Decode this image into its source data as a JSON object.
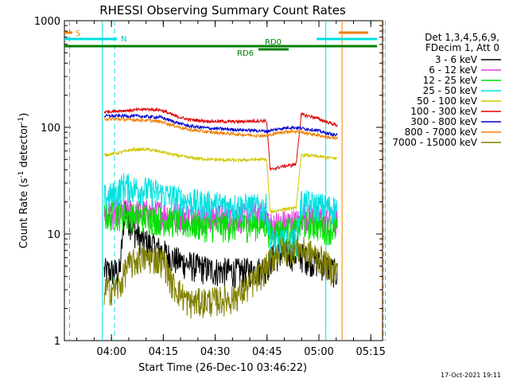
{
  "chart_data": {
    "type": "line",
    "title": "RHESSI Observing Summary Count Rates",
    "xlabel": "Start Time (26-Dec-10 03:46:22)",
    "ylabel_main": "Count Rate (s",
    "ylabel_sup1": "-1",
    "ylabel_mid": " detector",
    "ylabel_sup2": "-1",
    "ylabel_end": ")",
    "yscale": "log",
    "ylim": [
      1,
      1000
    ],
    "xlim_min": [
      0,
      92
    ],
    "y_ticks": [
      {
        "value": 1,
        "label": "1"
      },
      {
        "value": 10,
        "label": "10"
      },
      {
        "value": 100,
        "label": "100"
      },
      {
        "value": 1000,
        "label": "1000"
      }
    ],
    "x_ticks": [
      {
        "value": 13.6,
        "label": "04:00"
      },
      {
        "value": 28.6,
        "label": "04:15"
      },
      {
        "value": 43.6,
        "label": "04:30"
      },
      {
        "value": 58.6,
        "label": "04:45"
      },
      {
        "value": 73.6,
        "label": "05:00"
      },
      {
        "value": 88.6,
        "label": "05:15"
      }
    ],
    "legend_header": [
      "Det 1,3,4,5,6,9,",
      "FDecim 1, Att 0"
    ],
    "series": [
      {
        "name": "3 - 6 keV",
        "color": "#000000",
        "points": [
          [
            11.5,
            4.5
          ],
          [
            16,
            4.5
          ],
          [
            17.5,
            18
          ],
          [
            18.5,
            14
          ],
          [
            20,
            11
          ],
          [
            22,
            9
          ],
          [
            25,
            8
          ],
          [
            28,
            7
          ],
          [
            31,
            6
          ],
          [
            34,
            5.5
          ],
          [
            38,
            5
          ],
          [
            43,
            4.6
          ],
          [
            50,
            4.5
          ],
          [
            56,
            4.6
          ],
          [
            58.5,
            5
          ],
          [
            60,
            6
          ],
          [
            62,
            6.5
          ],
          [
            67,
            6.5
          ],
          [
            70,
            6
          ],
          [
            73,
            5.5
          ],
          [
            76,
            5
          ],
          [
            78,
            4.5
          ],
          [
            79,
            4.2
          ]
        ]
      },
      {
        "name": "6 - 12 keV",
        "color": "#e040e0",
        "points": [
          [
            11.5,
            16
          ],
          [
            16,
            16
          ],
          [
            17.5,
            16.5
          ],
          [
            20,
            16
          ],
          [
            28,
            15.8
          ],
          [
            35,
            15
          ],
          [
            42,
            14.5
          ],
          [
            50,
            14.5
          ],
          [
            56,
            15
          ],
          [
            58.5,
            15
          ],
          [
            59.5,
            12
          ],
          [
            61,
            12.5
          ],
          [
            65,
            13
          ],
          [
            68,
            13
          ],
          [
            68.5,
            15
          ],
          [
            72,
            14.5
          ],
          [
            76,
            13.5
          ],
          [
            79,
            13
          ]
        ]
      },
      {
        "name": "12 - 25 keV",
        "color": "#00e000",
        "points": [
          [
            11.5,
            15
          ],
          [
            16,
            15.5
          ],
          [
            18,
            15
          ],
          [
            24,
            14.5
          ],
          [
            30,
            13.5
          ],
          [
            36,
            12.5
          ],
          [
            42,
            12
          ],
          [
            50,
            12
          ],
          [
            56,
            12.5
          ],
          [
            58.5,
            12.5
          ],
          [
            59.5,
            10
          ],
          [
            63,
            11
          ],
          [
            67,
            11
          ],
          [
            68.5,
            12.5
          ],
          [
            72,
            12.5
          ],
          [
            76,
            11.5
          ],
          [
            79,
            11
          ]
        ]
      },
      {
        "name": "25 - 50 keV",
        "color": "#00e0e0",
        "points": [
          [
            11.5,
            22
          ],
          [
            15,
            24
          ],
          [
            17,
            29
          ],
          [
            20,
            27
          ],
          [
            24,
            26
          ],
          [
            28,
            24
          ],
          [
            34,
            21
          ],
          [
            40,
            19.5
          ],
          [
            48,
            18.5
          ],
          [
            56,
            18
          ],
          [
            58.5,
            18
          ],
          [
            59.5,
            9
          ],
          [
            61,
            8
          ],
          [
            63,
            8.5
          ],
          [
            67,
            8.5
          ],
          [
            68.5,
            20
          ],
          [
            72,
            19
          ],
          [
            76,
            18
          ],
          [
            79,
            17.5
          ]
        ]
      },
      {
        "name": "50 - 100 keV",
        "color": "#d0c800",
        "points": [
          [
            11.5,
            55
          ],
          [
            16,
            58
          ],
          [
            20,
            62
          ],
          [
            24,
            62
          ],
          [
            28,
            59
          ],
          [
            32,
            55
          ],
          [
            36,
            52
          ],
          [
            42,
            50
          ],
          [
            50,
            49
          ],
          [
            56,
            50
          ],
          [
            58.5,
            50
          ],
          [
            59.5,
            16
          ],
          [
            63,
            17
          ],
          [
            67,
            17.5
          ],
          [
            68.5,
            55
          ],
          [
            72,
            54
          ],
          [
            76,
            52
          ],
          [
            79,
            51
          ]
        ]
      },
      {
        "name": "100 - 300 keV",
        "color": "#e00000",
        "points": [
          [
            11.5,
            140
          ],
          [
            16,
            143
          ],
          [
            20,
            145
          ],
          [
            24,
            148
          ],
          [
            28,
            145
          ],
          [
            32,
            128
          ],
          [
            36,
            118
          ],
          [
            42,
            114
          ],
          [
            50,
            113
          ],
          [
            56,
            115
          ],
          [
            58.5,
            115
          ],
          [
            59.5,
            40
          ],
          [
            63,
            43
          ],
          [
            67,
            45
          ],
          [
            68.5,
            132
          ],
          [
            72,
            125
          ],
          [
            76,
            112
          ],
          [
            79,
            104
          ]
        ]
      },
      {
        "name": "300 - 800 keV",
        "color": "#0000d0",
        "points": [
          [
            11.5,
            128
          ],
          [
            16,
            128
          ],
          [
            20,
            128
          ],
          [
            24,
            126
          ],
          [
            28,
            124
          ],
          [
            32,
            112
          ],
          [
            36,
            103
          ],
          [
            42,
            98
          ],
          [
            50,
            95
          ],
          [
            56,
            93
          ],
          [
            58.5,
            92
          ],
          [
            60,
            94
          ],
          [
            63,
            98
          ],
          [
            66,
            100
          ],
          [
            68.5,
            98
          ],
          [
            72,
            95
          ],
          [
            76,
            88
          ],
          [
            79,
            84
          ]
        ]
      },
      {
        "name": "800 - 7000 keV",
        "color": "#f08000",
        "points": [
          [
            11.5,
            120
          ],
          [
            16,
            119
          ],
          [
            20,
            118
          ],
          [
            24,
            116
          ],
          [
            28,
            113
          ],
          [
            32,
            103
          ],
          [
            36,
            95
          ],
          [
            42,
            90
          ],
          [
            50,
            86
          ],
          [
            56,
            84
          ],
          [
            58.5,
            83
          ],
          [
            60,
            86
          ],
          [
            63,
            90
          ],
          [
            66,
            92
          ],
          [
            68.5,
            90
          ],
          [
            72,
            86
          ],
          [
            76,
            81
          ],
          [
            79,
            78
          ]
        ]
      },
      {
        "name": "7000 - 15000 keV",
        "color": "#808000",
        "points": [
          [
            11.5,
            3
          ],
          [
            16,
            3.2
          ],
          [
            18,
            5
          ],
          [
            22,
            6
          ],
          [
            26,
            6
          ],
          [
            29,
            5.5
          ],
          [
            31,
            3.5
          ],
          [
            36,
            2.3
          ],
          [
            42,
            2.4
          ],
          [
            48,
            2.5
          ],
          [
            52,
            3
          ],
          [
            56,
            4
          ],
          [
            58.5,
            5
          ],
          [
            60,
            6
          ],
          [
            62,
            7
          ],
          [
            66,
            7.5
          ],
          [
            70,
            7
          ],
          [
            74,
            6
          ],
          [
            77,
            4.8
          ],
          [
            79,
            4.5
          ]
        ]
      }
    ],
    "annotations": {
      "orange_dashed_x": [
        1.5,
        92.2
      ],
      "orange_solid_x": [
        80.3
      ],
      "cyan_dashed_x": [
        14.5,
        92.8
      ],
      "cyan_solid_x": [
        11.0,
        75.6
      ],
      "S_label": "S",
      "N_label": "N",
      "RD0_label": "RD0",
      "RD6_label": "RD6"
    },
    "footer_timestamp": "17-Oct-2021 19:11"
  }
}
